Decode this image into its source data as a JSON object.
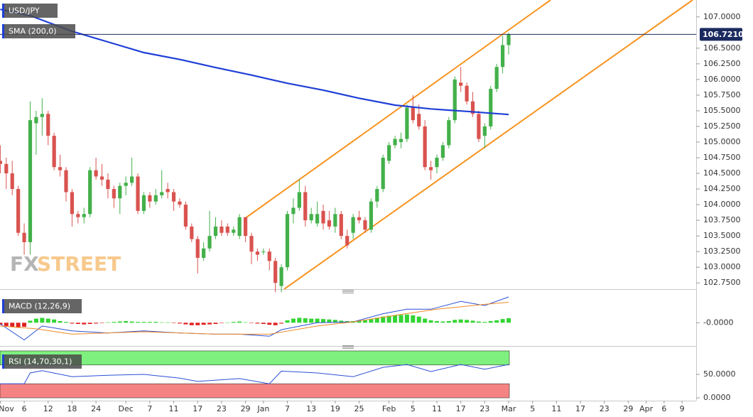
{
  "chart_data": {
    "type": "candlestick",
    "title": "USD/JPY",
    "watermark": [
      "FX",
      "STREET"
    ],
    "xlim": [
      0,
      116
    ],
    "xticks": [
      {
        "value": 0,
        "label": "Nov"
      },
      {
        "value": 4,
        "label": "6"
      },
      {
        "value": 8,
        "label": "12"
      },
      {
        "value": 12,
        "label": "18"
      },
      {
        "value": 16,
        "label": "24"
      },
      {
        "value": 21,
        "label": "Dec"
      },
      {
        "value": 25,
        "label": "7"
      },
      {
        "value": 29,
        "label": "11"
      },
      {
        "value": 33,
        "label": "17"
      },
      {
        "value": 37,
        "label": "23"
      },
      {
        "value": 41,
        "label": "29"
      },
      {
        "value": 44,
        "label": "Jan"
      },
      {
        "value": 48,
        "label": "7"
      },
      {
        "value": 52,
        "label": "13"
      },
      {
        "value": 56,
        "label": "19"
      },
      {
        "value": 60,
        "label": "25"
      },
      {
        "value": 65,
        "label": "Feb"
      },
      {
        "value": 69,
        "label": "5"
      },
      {
        "value": 73,
        "label": "11"
      },
      {
        "value": 77,
        "label": "17"
      },
      {
        "value": 81,
        "label": "23"
      },
      {
        "value": 85,
        "label": "Mar"
      },
      {
        "value": 89,
        "label": "5"
      },
      {
        "value": 93,
        "label": "11"
      },
      {
        "value": 97,
        "label": "17"
      },
      {
        "value": 101,
        "label": "23"
      },
      {
        "value": 105,
        "label": "29"
      },
      {
        "value": 108,
        "label": "Apr"
      },
      {
        "value": 111,
        "label": "6"
      },
      {
        "value": 114,
        "label": "9"
      }
    ],
    "ylim": [
      102.65,
      107.27
    ],
    "yticks": [
      {
        "value": 107,
        "label": "107.0000"
      },
      {
        "value": 106.5,
        "label": "106.5000"
      },
      {
        "value": 106.25,
        "label": "106.2500"
      },
      {
        "value": 106,
        "label": "106.0000"
      },
      {
        "value": 105.75,
        "label": "105.7500"
      },
      {
        "value": 105.5,
        "label": "105.5000"
      },
      {
        "value": 105.25,
        "label": "105.2500"
      },
      {
        "value": 105,
        "label": "105.0000"
      },
      {
        "value": 104.75,
        "label": "104.7500"
      },
      {
        "value": 104.5,
        "label": "104.5000"
      },
      {
        "value": 104.25,
        "label": "104.2500"
      },
      {
        "value": 104,
        "label": "104.0000"
      },
      {
        "value": 103.75,
        "label": "103.7500"
      },
      {
        "value": 103.5,
        "label": "103.5000"
      },
      {
        "value": 103.25,
        "label": "103.2500"
      },
      {
        "value": 103,
        "label": "103.0000"
      },
      {
        "value": 102.75,
        "label": "102.7500"
      }
    ],
    "last_price": {
      "value": 106.721,
      "label": "106.7210",
      "color": "#1b2a5e"
    },
    "colors": {
      "up": "#43b04a",
      "down": "#d9534f"
    },
    "open": [
      104.7,
      104.65,
      104.5,
      104.25,
      103.55,
      103.4,
      105.3,
      105.4,
      105.45,
      105.1,
      104.6,
      104.55,
      104.2,
      103.85,
      103.8,
      103.85,
      104.55,
      104.45,
      104.4,
      104.25,
      104.1,
      104.3,
      104.35,
      104.45,
      103.9,
      104.15,
      104.05,
      104.15,
      104.25,
      104.2,
      104.05,
      104.0,
      103.65,
      103.45,
      103.15,
      103.3,
      103.5,
      103.65,
      103.65,
      103.55,
      103.5,
      103.8,
      103.5,
      103.25,
      103.25,
      103.25,
      103.1,
      102.7,
      103.0,
      103.85,
      103.95,
      104.2,
      103.75,
      103.7,
      103.9,
      103.75,
      103.65,
      103.85,
      103.5,
      103.55,
      103.8,
      103.75,
      103.6,
      104.05,
      104.25,
      104.7,
      104.95,
      105.0,
      105.05,
      105.55,
      105.45,
      105.25,
      104.6,
      104.6,
      104.75,
      104.95,
      105.35,
      105.95,
      105.9,
      105.65,
      105.45,
      105.1,
      105.25,
      105.85,
      106.2,
      106.55
    ],
    "high": [
      104.95,
      104.75,
      104.7,
      104.3,
      103.7,
      105.65,
      105.5,
      105.7,
      105.5,
      105.15,
      104.8,
      104.6,
      104.25,
      103.9,
      103.95,
      104.6,
      104.75,
      104.65,
      104.5,
      104.3,
      104.35,
      104.45,
      104.75,
      104.5,
      104.2,
      104.2,
      104.25,
      104.55,
      104.35,
      104.25,
      104.1,
      104.05,
      103.7,
      103.5,
      103.4,
      103.9,
      103.8,
      103.75,
      103.7,
      103.65,
      103.85,
      103.8,
      103.55,
      103.3,
      103.3,
      103.3,
      103.15,
      103.05,
      103.9,
      104.1,
      104.4,
      104.3,
      103.95,
      104.05,
      104.0,
      103.9,
      103.95,
      103.9,
      103.6,
      103.85,
      103.9,
      103.8,
      104.1,
      104.3,
      104.8,
      105.0,
      105.1,
      105.15,
      105.6,
      105.75,
      105.6,
      105.35,
      104.7,
      104.8,
      105.0,
      105.4,
      106.05,
      106.2,
      105.95,
      105.8,
      105.5,
      105.3,
      105.9,
      106.25,
      106.7,
      106.75
    ],
    "low": [
      104.5,
      104.25,
      104.15,
      103.5,
      103.2,
      103.2,
      104.8,
      105.1,
      104.95,
      104.55,
      104.45,
      104.05,
      103.65,
      103.7,
      103.7,
      103.8,
      104.4,
      104.3,
      104.1,
      103.95,
      103.85,
      104.15,
      104.3,
      103.85,
      103.85,
      103.95,
      104.0,
      104.1,
      104.1,
      103.9,
      103.95,
      103.6,
      103.4,
      102.9,
      103.1,
      103.25,
      103.45,
      103.5,
      103.5,
      103.5,
      103.45,
      103.4,
      103.05,
      103.1,
      103.2,
      102.95,
      102.6,
      102.6,
      102.95,
      103.7,
      103.9,
      103.65,
      103.7,
      103.65,
      103.6,
      103.6,
      103.55,
      103.45,
      103.3,
      103.45,
      103.7,
      103.55,
      103.55,
      103.95,
      104.2,
      104.65,
      104.9,
      104.9,
      105.0,
      105.3,
      105.2,
      104.55,
      104.4,
      104.5,
      104.7,
      104.9,
      105.3,
      105.8,
      105.6,
      105.4,
      105.0,
      104.9,
      105.2,
      105.8,
      106.1,
      106.4
    ],
    "close": [
      104.65,
      104.5,
      104.25,
      103.55,
      103.4,
      105.35,
      105.4,
      105.45,
      105.1,
      104.6,
      104.55,
      104.2,
      103.85,
      103.8,
      103.85,
      104.55,
      104.45,
      104.4,
      104.25,
      104.1,
      104.3,
      104.35,
      104.45,
      103.9,
      104.15,
      104.05,
      104.15,
      104.2,
      104.2,
      104.05,
      104.0,
      103.65,
      103.45,
      103.15,
      103.3,
      103.5,
      103.65,
      103.55,
      103.55,
      103.6,
      103.8,
      103.5,
      103.25,
      103.2,
      103.25,
      103.1,
      102.75,
      103.0,
      103.85,
      103.95,
      104.2,
      103.75,
      103.85,
      103.85,
      103.7,
      103.65,
      103.85,
      103.5,
      103.35,
      103.8,
      103.75,
      103.6,
      104.05,
      104.25,
      104.75,
      104.95,
      105.05,
      105.05,
      105.55,
      105.35,
      105.25,
      104.6,
      104.55,
      104.75,
      104.95,
      105.35,
      106.0,
      105.9,
      105.65,
      105.45,
      105.05,
      105.25,
      105.85,
      106.2,
      106.55,
      106.72
    ],
    "overlays": [
      {
        "name": "SMA (200,0)",
        "color": "#1f3fd6",
        "x": [
          0,
          5,
          12,
          18,
          24,
          30,
          36,
          42,
          48,
          54,
          60,
          66,
          72,
          78,
          85
        ],
        "values": [
          107.12,
          107.02,
          106.77,
          106.6,
          106.43,
          106.32,
          106.19,
          106.07,
          105.94,
          105.83,
          105.7,
          105.59,
          105.53,
          105.49,
          105.44
        ]
      }
    ],
    "panels": [
      {
        "type": "macd",
        "name": "MACD (12,26,9)",
        "ylim": [
          -0.533,
          0.717
        ],
        "yticks": [
          {
            "value": 0,
            "label": "-0.0000"
          }
        ],
        "histogram": {
          "colors": {
            "up": "#33d433",
            "down": "#e02020"
          },
          "values": [
            -0.05,
            -0.08,
            -0.1,
            -0.12,
            -0.1,
            0.05,
            0.1,
            0.12,
            0.1,
            0.08,
            0.04,
            0.02,
            -0.02,
            -0.03,
            -0.04,
            -0.03,
            -0.02,
            -0.01,
            0.01,
            0.02,
            0.03,
            0.04,
            0.03,
            0.02,
            0.02,
            0.02,
            0.02,
            0.01,
            0.01,
            -0.01,
            -0.02,
            -0.04,
            -0.06,
            -0.06,
            -0.05,
            -0.04,
            -0.03,
            -0.01,
            0,
            0.02,
            0.03,
            0.01,
            -0.01,
            -0.02,
            -0.03,
            -0.05,
            -0.06,
            -0.02,
            0.06,
            0.1,
            0.12,
            0.11,
            0.1,
            0.1,
            0.09,
            0.08,
            0.07,
            0.05,
            0.04,
            0.04,
            0.05,
            0.06,
            0.09,
            0.12,
            0.15,
            0.17,
            0.18,
            0.19,
            0.2,
            0.18,
            0.15,
            0.1,
            0.06,
            0.04,
            0.03,
            0.04,
            0.07,
            0.08,
            0.07,
            0.05,
            0.03,
            0.02,
            0.04,
            0.06,
            0.09,
            0.11
          ]
        },
        "series": [
          {
            "color": "#2a4fd6",
            "x": [
              0,
              4,
              7,
              12,
              18,
              24,
              30,
              36,
              40,
              45,
              47,
              53,
              59,
              64,
              68,
              72,
              77,
              81,
              85
            ],
            "values": [
              -0.03,
              -0.42,
              -0.08,
              -0.2,
              -0.25,
              -0.2,
              -0.25,
              -0.28,
              -0.28,
              -0.33,
              -0.17,
              0,
              0.02,
              0.22,
              0.33,
              0.33,
              0.52,
              0.42,
              0.63
            ]
          },
          {
            "color": "#f08a24",
            "x": [
              0,
              6,
              12,
              24,
              36,
              45,
              53,
              59,
              66,
              73,
              81,
              85
            ],
            "values": [
              -0.08,
              -0.15,
              -0.28,
              -0.22,
              -0.28,
              -0.28,
              -0.08,
              0.02,
              0.18,
              0.33,
              0.45,
              0.5
            ]
          }
        ]
      },
      {
        "type": "rsi",
        "name": "RSI (14,70,30,1)",
        "ylim": [
          -3,
          106
        ],
        "yticks": [
          {
            "value": 50,
            "label": "50.0000"
          },
          {
            "value": 0,
            "label": "0.0000"
          }
        ],
        "bands": [
          {
            "from": 70,
            "to": 100,
            "color": "#7ef07e"
          },
          {
            "from": 0,
            "to": 30,
            "color": "#f58383"
          }
        ],
        "series": [
          {
            "color": "#2a4fd6",
            "x": [
              0,
              4,
              5,
              7,
              12,
              18,
              24,
              30,
              33,
              40,
              45,
              47,
              53,
              59,
              64,
              68,
              72,
              77,
              81,
              85
            ],
            "values": [
              30,
              30,
              53,
              58,
              45,
              48,
              50,
              42,
              35,
              41,
              30,
              57,
              53,
              45,
              65,
              71,
              56,
              71,
              61,
              71
            ]
          }
        ]
      }
    ]
  }
}
